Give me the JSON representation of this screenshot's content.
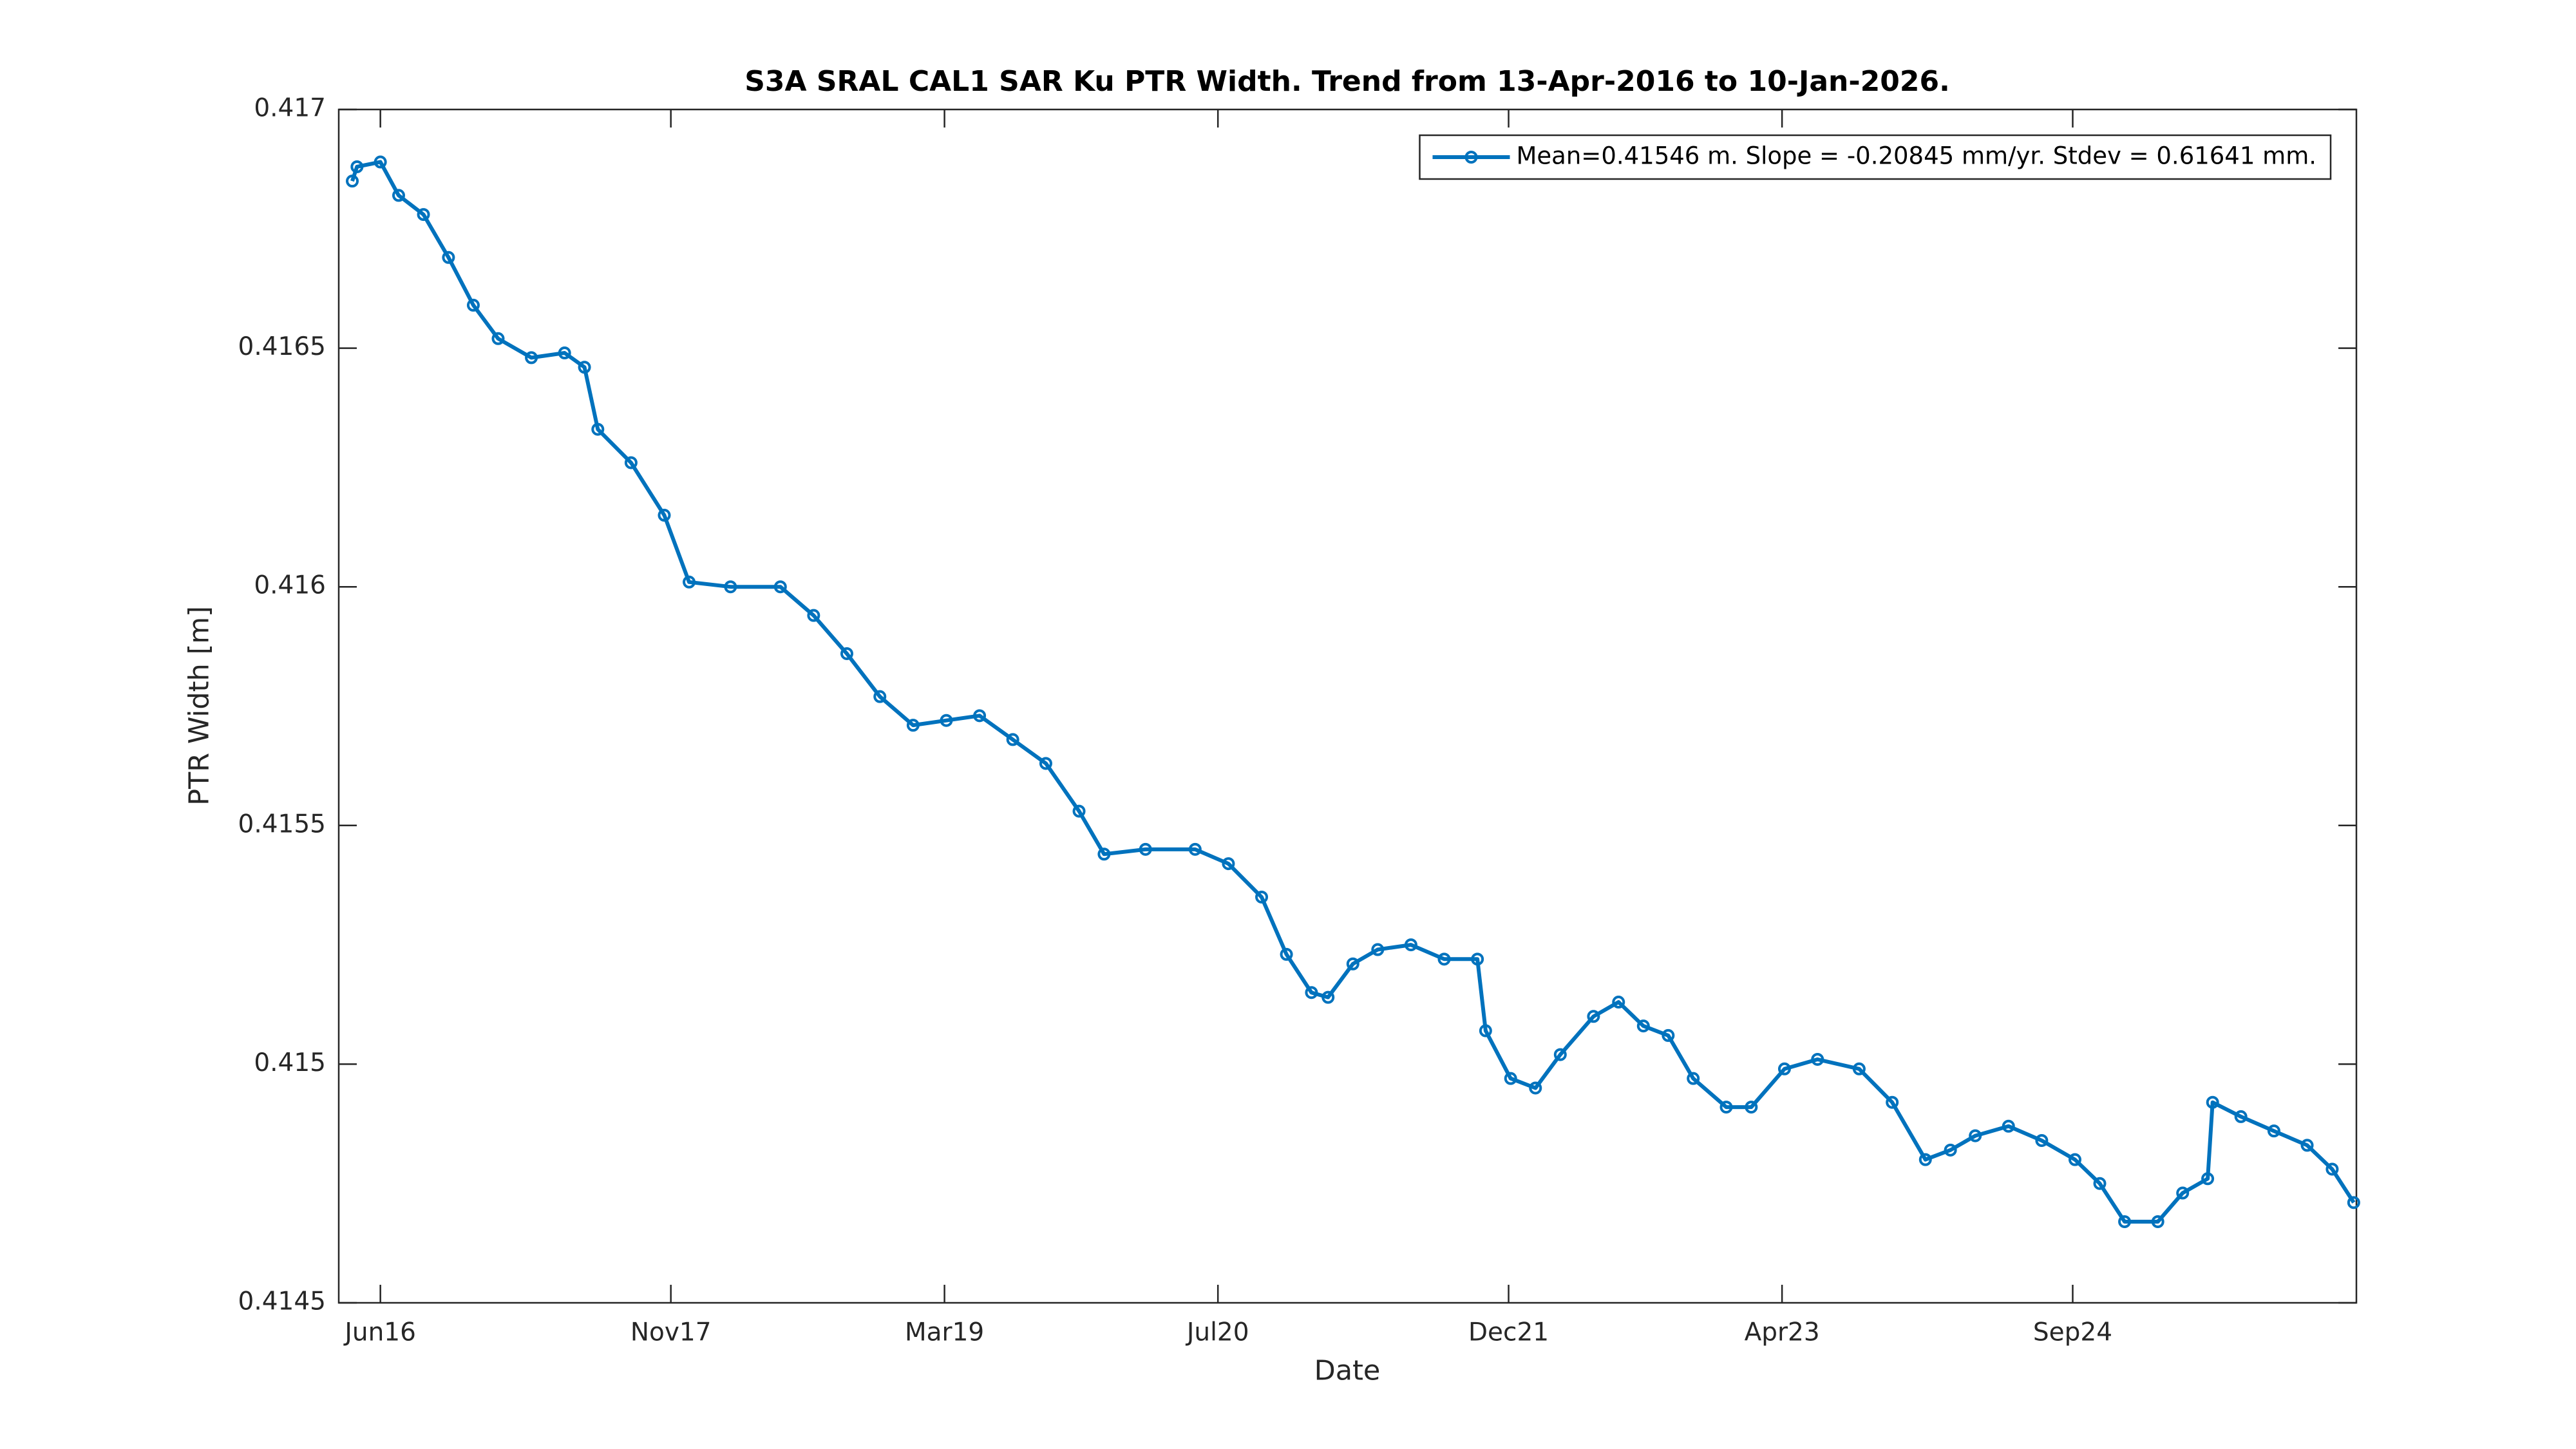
{
  "chart_data": {
    "type": "line",
    "title": "S3A SRAL CAL1 SAR Ku PTR Width. Trend from 13-Apr-2016 to 10-Jan-2026.",
    "x_label": "Date",
    "y_label": "PTR Width [m]",
    "x": [
      2016.28,
      2016.303,
      2016.417,
      2016.506,
      2016.627,
      2016.749,
      2016.87,
      2016.991,
      2017.153,
      2017.315,
      2017.412,
      2017.477,
      2017.639,
      2017.801,
      2017.922,
      2018.124,
      2018.367,
      2018.529,
      2018.691,
      2018.852,
      2019.014,
      2019.176,
      2019.338,
      2019.5,
      2019.661,
      2019.823,
      2019.945,
      2020.147,
      2020.389,
      2020.551,
      2020.713,
      2020.834,
      2020.956,
      2021.037,
      2021.158,
      2021.279,
      2021.441,
      2021.603,
      2021.765,
      2021.805,
      2021.927,
      2022.048,
      2022.169,
      2022.331,
      2022.453,
      2022.574,
      2022.695,
      2022.817,
      2022.978,
      2023.1,
      2023.262,
      2023.423,
      2023.626,
      2023.787,
      2023.949,
      2024.071,
      2024.192,
      2024.354,
      2024.516,
      2024.678,
      2024.799,
      2024.92,
      2025.082,
      2025.203,
      2025.325,
      2025.349,
      2025.487,
      2025.648,
      2025.81,
      2025.932,
      2026.037
    ],
    "series": [
      {
        "name": "Mean=0.41546 m. Slope = -0.20845 mm/yr. Stdev = 0.61641 mm.",
        "color": "#0072BD",
        "values": [
          0.41685,
          0.41688,
          0.41689,
          0.41682,
          0.41678,
          0.41669,
          0.41659,
          0.41652,
          0.41648,
          0.41649,
          0.41646,
          0.41633,
          0.41626,
          0.41615,
          0.41601,
          0.416,
          0.416,
          0.41594,
          0.41586,
          0.41577,
          0.41571,
          0.41572,
          0.41573,
          0.41568,
          0.41563,
          0.41553,
          0.41544,
          0.41545,
          0.41545,
          0.41542,
          0.41535,
          0.41523,
          0.41515,
          0.41514,
          0.41521,
          0.41524,
          0.41525,
          0.41522,
          0.41522,
          0.41507,
          0.41497,
          0.41495,
          0.41502,
          0.4151,
          0.41513,
          0.41508,
          0.41506,
          0.41497,
          0.41491,
          0.41491,
          0.41499,
          0.41501,
          0.41499,
          0.41492,
          0.4148,
          0.41482,
          0.41485,
          0.41487,
          0.41484,
          0.4148,
          0.41475,
          0.41467,
          0.41467,
          0.41473,
          0.41476,
          0.41492,
          0.41489,
          0.41486,
          0.41483,
          0.41478,
          0.41471
        ]
      }
    ],
    "xlim": [
      2016.214,
      2026.05
    ],
    "xticks": [
      {
        "value": 2016.417,
        "label": "Jun16"
      },
      {
        "value": 2017.833,
        "label": "Nov17"
      },
      {
        "value": 2019.167,
        "label": "Mar19"
      },
      {
        "value": 2020.5,
        "label": "Jul20"
      },
      {
        "value": 2021.917,
        "label": "Dec21"
      },
      {
        "value": 2023.25,
        "label": "Apr23"
      },
      {
        "value": 2024.667,
        "label": "Sep24"
      }
    ],
    "ylim": [
      0.4145,
      0.417
    ],
    "yticks": [
      0.4145,
      0.415,
      0.4155,
      0.416,
      0.4165,
      0.417
    ],
    "grid": false,
    "markers": true,
    "legend": "northeast"
  }
}
